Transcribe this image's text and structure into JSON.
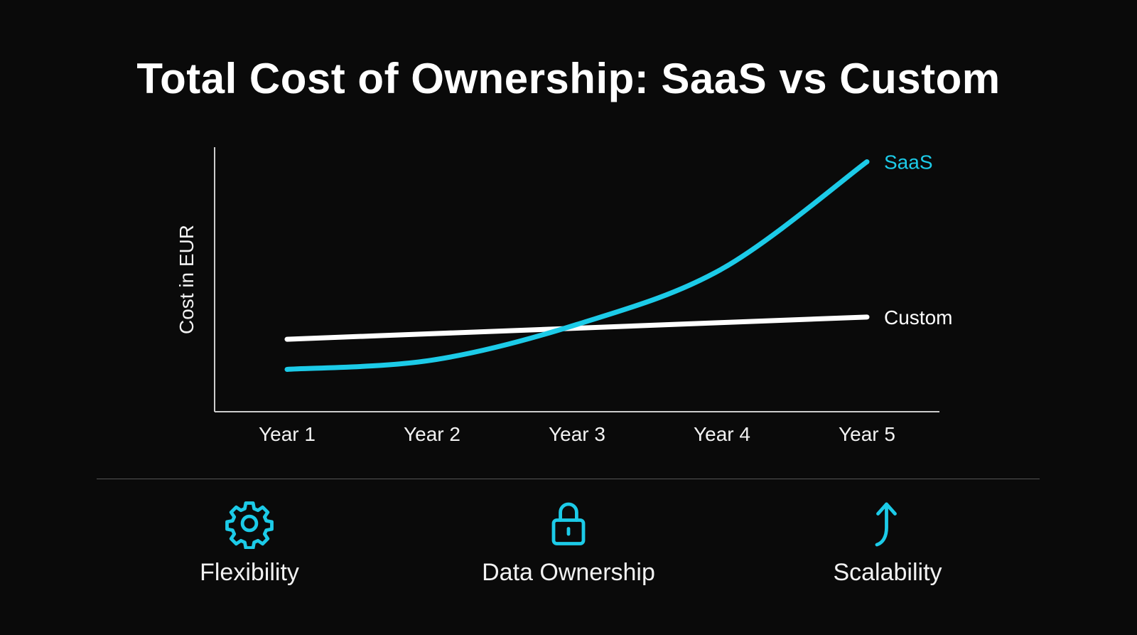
{
  "title": "Total Cost of Ownership: SaaS vs Custom",
  "colors": {
    "background": "#0a0a0a",
    "saas": "#1ccbe8",
    "custom": "#ffffff",
    "axis": "#cccccc",
    "icon": "#1ccbe8"
  },
  "chart_data": {
    "type": "line",
    "title": "Total Cost of Ownership: SaaS vs Custom",
    "xlabel": "",
    "ylabel": "Cost in EUR",
    "categories": [
      "Year 1",
      "Year 2",
      "Year 3",
      "Year 4",
      "Year 5"
    ],
    "ylim": [
      0,
      100
    ],
    "y_ticks_shown": false,
    "grid": false,
    "legend": "inline labels at line ends (right)",
    "series": [
      {
        "name": "SaaS",
        "values": [
          16,
          19.5,
          33,
          54,
          94.5
        ],
        "color": "#1ccbe8"
      },
      {
        "name": "Custom",
        "values": [
          27.4,
          29.5,
          31.6,
          33.7,
          35.8
        ],
        "color": "#ffffff"
      }
    ]
  },
  "features": [
    {
      "icon": "gear-icon",
      "label": "Flexibility"
    },
    {
      "icon": "lock-icon",
      "label": "Data Ownership"
    },
    {
      "icon": "arrow-up-curve-icon",
      "label": "Scalability"
    }
  ]
}
